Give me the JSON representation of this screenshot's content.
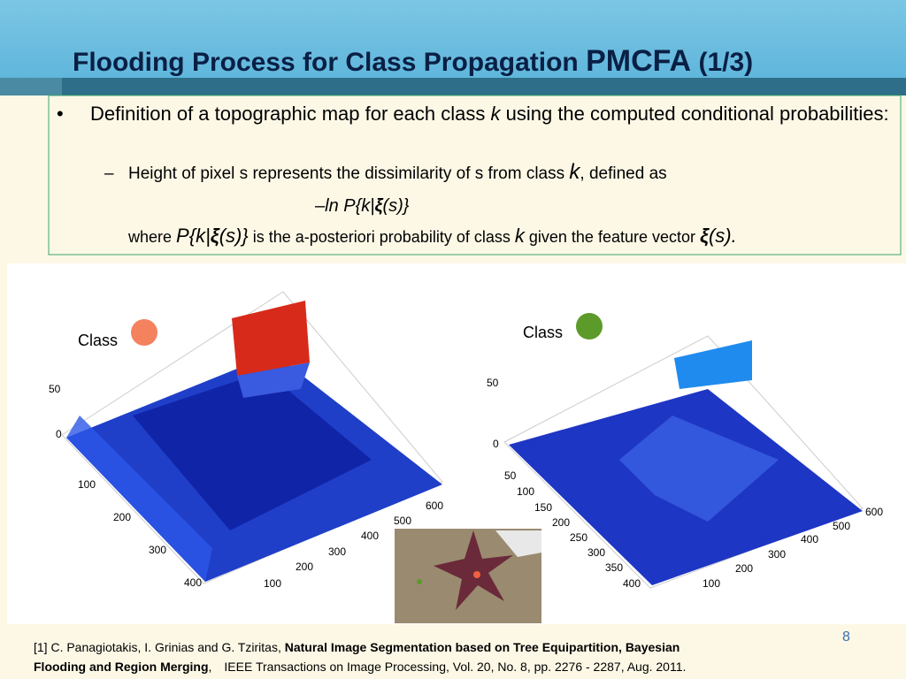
{
  "header": {
    "title": "Flooding Process for Class Propagation",
    "acronym": "PMCFA",
    "part": "(1/3)"
  },
  "bullet": {
    "text1": "Definition of a topographic map for each class",
    "k": "k",
    "text2": "using the computed conditional probabilities:"
  },
  "sub_bullet": {
    "text1": "Height of pixel s represents the dissimilarity of s from class",
    "k": "k",
    "text2": ", defined as"
  },
  "formula": {
    "part1": "–ln P{k|",
    "xi": "ξ",
    "part2": "(s)}"
  },
  "where": {
    "w": "where",
    "p1": "P{k|",
    "xi": "ξ",
    "p2": "(s)}",
    "text1": "is the a-posteriori probability of class",
    "k": "k",
    "text2": "given the feature vector",
    "xi2": "ξ",
    "end": "(s)."
  },
  "plots": [
    {
      "label": "Class",
      "zticks": [
        "50",
        "0"
      ],
      "yticks": [
        "100",
        "200",
        "300",
        "400"
      ],
      "xticks": [
        "100",
        "200",
        "300",
        "400",
        "500",
        "600"
      ]
    },
    {
      "label": "Class",
      "zticks": [
        "50",
        "0"
      ],
      "yticks": [
        "50",
        "100",
        "150",
        "200",
        "250",
        "300",
        "350",
        "400"
      ],
      "xticks": [
        "100",
        "200",
        "300",
        "400",
        "500",
        "600"
      ]
    }
  ],
  "page_number": "8",
  "footnote": {
    "authors": "[1] C. Panagiotakis, I. Grinias and G. Tziritas,",
    "title": "Natural Image Segmentation based  on Tree Equipartition, Bayesian Flooding and Region Merging",
    "sep": ",",
    "journal": "IEEE Transactions on Image Processing, Vol. 20, No. 8, pp. 2276 - 2287, Aug. 2011."
  }
}
